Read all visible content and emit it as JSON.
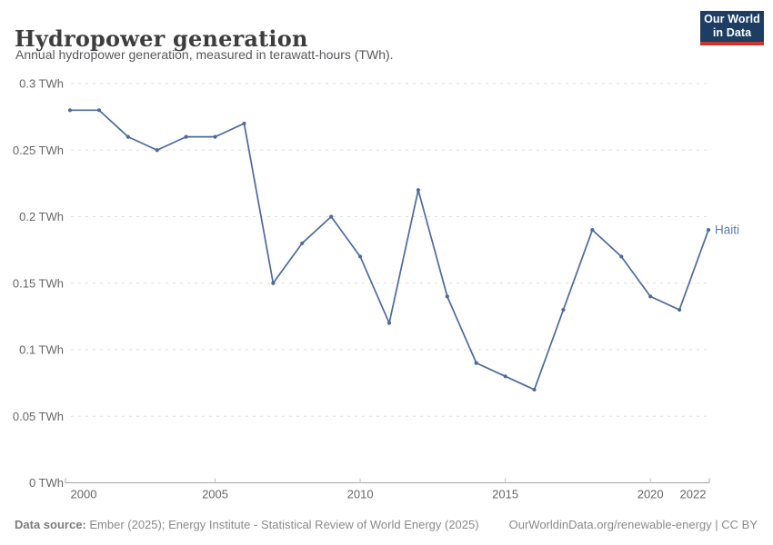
{
  "header": {
    "title": "Hydropower generation",
    "subtitle": "Annual hydropower generation, measured in terawatt-hours (TWh).",
    "logo": {
      "line1": "Our World",
      "line2": "in Data"
    }
  },
  "chart_data": {
    "type": "line",
    "title": "Hydropower generation",
    "ylabel": "terawatt-hours (TWh)",
    "x": [
      2000,
      2001,
      2002,
      2003,
      2004,
      2005,
      2006,
      2007,
      2008,
      2009,
      2010,
      2011,
      2012,
      2013,
      2014,
      2015,
      2016,
      2017,
      2018,
      2019,
      2020,
      2021,
      2022
    ],
    "series": [
      {
        "name": "Haiti",
        "color": "#4c6a9c",
        "label_color": "#5b7cb0",
        "values": [
          0.28,
          0.28,
          0.26,
          0.25,
          0.26,
          0.26,
          0.27,
          0.15,
          0.18,
          0.2,
          0.17,
          0.12,
          0.22,
          0.14,
          0.09,
          0.08,
          0.07,
          0.13,
          0.19,
          0.17,
          0.14,
          0.13,
          0.19
        ]
      }
    ],
    "xlim": [
      2000,
      2022
    ],
    "ylim": [
      0,
      0.3
    ],
    "x_ticks": [
      2000,
      2005,
      2010,
      2015,
      2020,
      2022
    ],
    "y_ticks": [
      0,
      0.05,
      0.1,
      0.15,
      0.2,
      0.25,
      0.3
    ],
    "y_tick_labels": [
      "0 TWh",
      "0.05 TWh",
      "0.1 TWh",
      "0.15 TWh",
      "0.2 TWh",
      "0.25 TWh",
      "0.3 TWh"
    ],
    "grid": "horizontal-dashed",
    "legend_position": "line-end-label"
  },
  "footer": {
    "source_label": "Data source:",
    "source_text": " Ember (2025); Energy Institute - Statistical Review of World Energy (2025)",
    "credit": "OurWorldinData.org/renewable-energy | CC BY"
  },
  "colors": {
    "line": "#4c6a9c",
    "series_label": "#5b7cb0",
    "logo_bg": "#1d3d63",
    "logo_accent": "#cc352c",
    "grid": "#dddddd",
    "axis": "#a5a5a5",
    "tick": "#c3c3c3",
    "tick_label": "#666666"
  }
}
